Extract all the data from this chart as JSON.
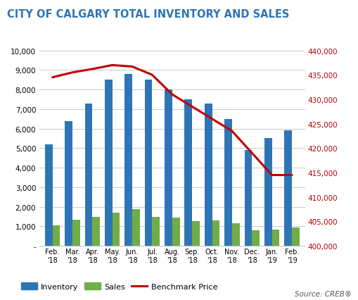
{
  "title": "CITY OF CALGARY TOTAL INVENTORY AND SALES",
  "months_line1": [
    "Feb.",
    "Mar.",
    "Apr.",
    "May.",
    "Jun.",
    "Jul.",
    "Aug.",
    "Sep.",
    "Oct.",
    "Nov.",
    "Dec.",
    "Jan.",
    "Feb."
  ],
  "months_line2": [
    "'18",
    "'18",
    "'18",
    "'18",
    "'18",
    "'18",
    "'18",
    "'18",
    "'18",
    "'18",
    "'18",
    "'19",
    "'19"
  ],
  "inventory": [
    5200,
    6400,
    7300,
    8500,
    8800,
    8500,
    8000,
    7500,
    7300,
    6500,
    4900,
    5500,
    5900
  ],
  "sales": [
    1050,
    1350,
    1480,
    1700,
    1880,
    1500,
    1450,
    1250,
    1300,
    1150,
    800,
    820,
    950
  ],
  "benchmark_price": [
    434500,
    435500,
    436200,
    437000,
    436700,
    435000,
    431000,
    428500,
    426000,
    423500,
    419000,
    414500,
    414500
  ],
  "inventory_color": "#2E75B6",
  "sales_color": "#70AD47",
  "benchmark_color": "#C00000",
  "title_color": "#2E75B6",
  "left_ylim": [
    0,
    10000
  ],
  "left_yticks": [
    0,
    1000,
    2000,
    3000,
    4000,
    5000,
    6000,
    7000,
    8000,
    9000,
    10000
  ],
  "right_ylim": [
    400000,
    440000
  ],
  "right_yticks": [
    400000,
    405000,
    410000,
    415000,
    420000,
    425000,
    430000,
    435000,
    440000
  ],
  "source_text": "Source: CREB®",
  "background_color": "#FFFFFF",
  "grid_color": "#C0C0C0"
}
